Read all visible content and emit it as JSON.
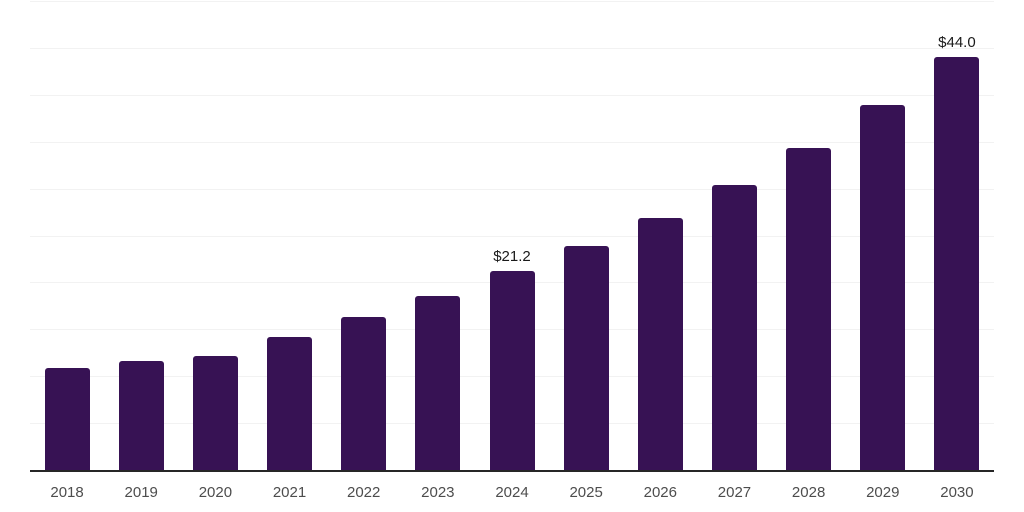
{
  "chart_data": {
    "type": "bar",
    "title": "",
    "xlabel": "",
    "ylabel": "",
    "categories": [
      "2018",
      "2019",
      "2020",
      "2021",
      "2022",
      "2023",
      "2024",
      "2025",
      "2026",
      "2027",
      "2028",
      "2029",
      "2030"
    ],
    "values": [
      10.9,
      11.6,
      12.2,
      14.2,
      16.3,
      18.6,
      21.2,
      23.9,
      26.9,
      30.4,
      34.3,
      38.9,
      44.0
    ],
    "data_labels": [
      null,
      null,
      null,
      null,
      null,
      null,
      "$21.2",
      null,
      null,
      null,
      null,
      null,
      "$44.0"
    ],
    "ylim": [
      0,
      50
    ],
    "grid": {
      "step": 5,
      "visible": true
    },
    "legend": "none",
    "colors": {
      "bar": "#371254",
      "gridline": "#f2f2f2",
      "axis_line": "#262626",
      "tick_label": "#4d4d4d",
      "value_label": "#1a1a1a",
      "background": "#ffffff"
    }
  }
}
